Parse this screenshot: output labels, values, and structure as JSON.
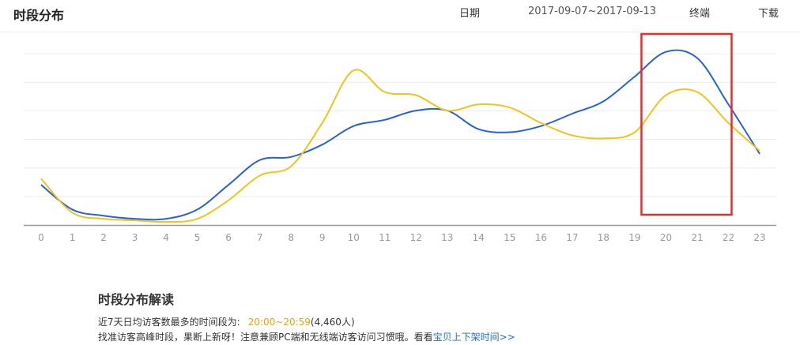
{
  "header": {
    "title": "时段分布",
    "date_label": "日期",
    "date_range": "2017-09-07~2017-09-13",
    "terminal_label": "终端",
    "download_label": "下载"
  },
  "chart_data": {
    "type": "line",
    "categories": [
      "0",
      "1",
      "2",
      "3",
      "4",
      "5",
      "6",
      "7",
      "8",
      "9",
      "10",
      "11",
      "12",
      "13",
      "14",
      "15",
      "16",
      "17",
      "18",
      "19",
      "20",
      "21",
      "22",
      "23"
    ],
    "series": [
      {
        "color": "#2563d6",
        "values": [
          13,
          5,
          3,
          2,
          2,
          5,
          13,
          21,
          22,
          26,
          32,
          34,
          37,
          37,
          31,
          30,
          32,
          36,
          40,
          48,
          56,
          54,
          39,
          23
        ]
      },
      {
        "color": "#f0c419",
        "values": [
          15,
          4,
          2,
          1.5,
          1,
          2,
          8,
          16,
          19,
          33,
          50,
          43,
          42,
          37,
          39,
          38,
          33,
          29,
          28,
          30,
          42,
          43,
          33,
          24
        ]
      }
    ],
    "ylim": [
      0,
      60
    ],
    "grid": true,
    "annotation": {
      "highlight_categories": [
        "20",
        "21",
        "22"
      ],
      "color": "#e03030"
    }
  },
  "analysis": {
    "title": "时段分布解读",
    "line1_prefix": "近7天日均访客数最多的时间段为:",
    "peak_period": "20:00~20:59",
    "peak_count": "(4,460人)",
    "line2_text": "找准访客高峰时段，果断上新呀！注意兼顾PC端和无线端访客访问习惯哦。看看",
    "line2_link": "宝贝上下架时间>>"
  }
}
